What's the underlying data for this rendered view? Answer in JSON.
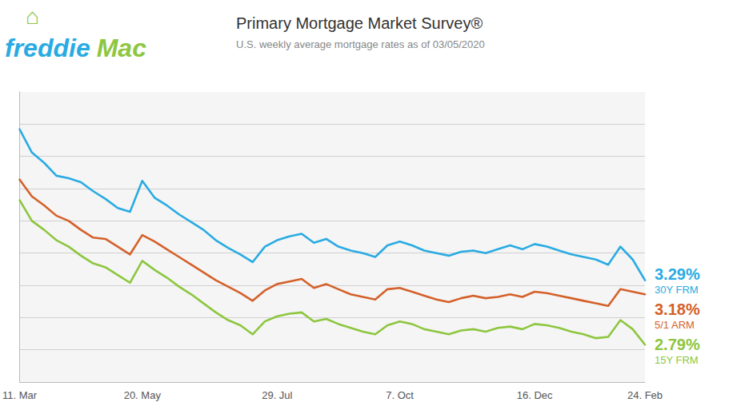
{
  "chart_data": {
    "type": "line",
    "title": "Primary Mortgage Market Survey®",
    "subtitle": "U.S. weekly average mortgage rates as of 03/05/2020",
    "categories": [
      "11. Mar",
      null,
      null,
      null,
      null,
      null,
      null,
      null,
      null,
      null,
      "20. May",
      null,
      null,
      null,
      null,
      null,
      null,
      null,
      null,
      null,
      null,
      "29. Jul",
      null,
      null,
      null,
      null,
      null,
      null,
      null,
      null,
      null,
      "7. Oct",
      null,
      null,
      null,
      null,
      null,
      null,
      null,
      null,
      null,
      null,
      "16. Dec",
      null,
      null,
      null,
      null,
      null,
      null,
      null,
      null,
      "24. Feb"
    ],
    "series": [
      {
        "name": "30Y FRM",
        "color": "#29abe2",
        "values": [
          4.46,
          4.28,
          4.2,
          4.1,
          4.08,
          4.05,
          3.98,
          3.92,
          3.85,
          3.82,
          4.06,
          3.93,
          3.87,
          3.8,
          3.74,
          3.68,
          3.6,
          3.54,
          3.49,
          3.43,
          3.55,
          3.6,
          3.63,
          3.65,
          3.58,
          3.61,
          3.55,
          3.52,
          3.5,
          3.47,
          3.56,
          3.59,
          3.56,
          3.52,
          3.5,
          3.48,
          3.51,
          3.52,
          3.5,
          3.53,
          3.56,
          3.53,
          3.57,
          3.55,
          3.52,
          3.49,
          3.47,
          3.45,
          3.41,
          3.55,
          3.45,
          3.29
        ]
      },
      {
        "name": "5/1 ARM",
        "color": "#d4612a",
        "values": [
          4.07,
          3.94,
          3.87,
          3.79,
          3.75,
          3.68,
          3.62,
          3.61,
          3.55,
          3.49,
          3.64,
          3.59,
          3.53,
          3.47,
          3.41,
          3.35,
          3.29,
          3.24,
          3.19,
          3.13,
          3.21,
          3.26,
          3.28,
          3.3,
          3.23,
          3.26,
          3.22,
          3.18,
          3.16,
          3.14,
          3.22,
          3.23,
          3.2,
          3.17,
          3.14,
          3.12,
          3.15,
          3.17,
          3.15,
          3.16,
          3.18,
          3.16,
          3.2,
          3.19,
          3.17,
          3.15,
          3.13,
          3.11,
          3.09,
          3.22,
          3.2,
          3.18
        ]
      },
      {
        "name": "15Y FRM",
        "color": "#8dc63f",
        "values": [
          3.91,
          3.75,
          3.68,
          3.6,
          3.55,
          3.48,
          3.42,
          3.39,
          3.33,
          3.27,
          3.44,
          3.37,
          3.31,
          3.24,
          3.18,
          3.11,
          3.04,
          2.98,
          2.94,
          2.87,
          2.97,
          3.01,
          3.03,
          3.04,
          2.97,
          2.99,
          2.95,
          2.92,
          2.89,
          2.87,
          2.94,
          2.97,
          2.95,
          2.91,
          2.89,
          2.87,
          2.9,
          2.91,
          2.89,
          2.92,
          2.93,
          2.91,
          2.95,
          2.94,
          2.92,
          2.89,
          2.87,
          2.84,
          2.85,
          2.98,
          2.91,
          2.79
        ]
      }
    ],
    "annotations": [
      {
        "text": "⌂",
        "color": "#8dc63f"
      },
      {
        "text": "freddie",
        "color": "#29abe2"
      },
      {
        "text": "Mac",
        "color": "#8dc63f"
      },
      {
        "text": "3.29%",
        "series": "30Y FRM"
      },
      {
        "text": "3.18%",
        "series": "5/1 ARM"
      },
      {
        "text": "2.79%",
        "series": "15Y FRM"
      }
    ],
    "ylim": [
      2.5,
      4.75
    ],
    "yticks": [
      2.75,
      3.0,
      3.25,
      3.5,
      3.75,
      4.0,
      4.25,
      4.5
    ],
    "grid": true,
    "tick_labels": "x"
  }
}
